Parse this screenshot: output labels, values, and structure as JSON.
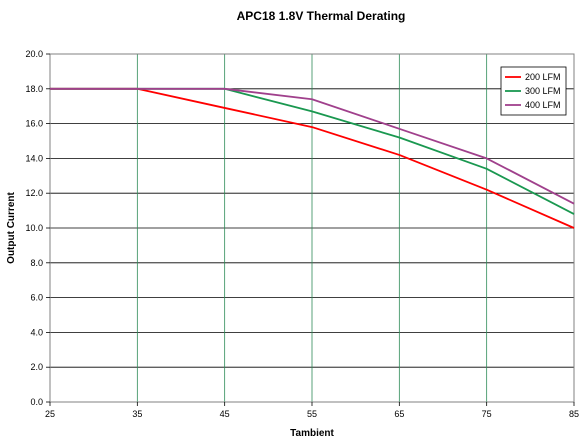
{
  "chart_data": {
    "type": "line",
    "title": "APC18 1.8V Thermal Derating",
    "xlabel": "Tambient",
    "ylabel": "Output Current",
    "x": [
      25,
      35,
      45,
      55,
      65,
      75,
      85
    ],
    "xlim": [
      25,
      85
    ],
    "ylim": [
      0,
      20
    ],
    "xticks": [
      "25",
      "35",
      "45",
      "55",
      "65",
      "75",
      "85"
    ],
    "yticks": [
      "0.0",
      "2.0",
      "4.0",
      "6.0",
      "8.0",
      "10.0",
      "12.0",
      "14.0",
      "16.0",
      "18.0",
      "20.0"
    ],
    "grid": true,
    "legend_position": "top-right",
    "series": [
      {
        "name": "200 LFM",
        "color": "#ff0000",
        "values": [
          18.0,
          18.0,
          16.9,
          15.8,
          14.2,
          12.2,
          10.0
        ]
      },
      {
        "name": "300 LFM",
        "color": "#1a9850",
        "values": [
          18.0,
          18.0,
          18.0,
          16.7,
          15.2,
          13.4,
          10.8
        ]
      },
      {
        "name": "400 LFM",
        "color": "#a0408c",
        "values": [
          18.0,
          18.0,
          18.0,
          17.4,
          15.7,
          14.0,
          11.4
        ]
      }
    ],
    "vertical_gridline_color": "#2e8b57"
  }
}
